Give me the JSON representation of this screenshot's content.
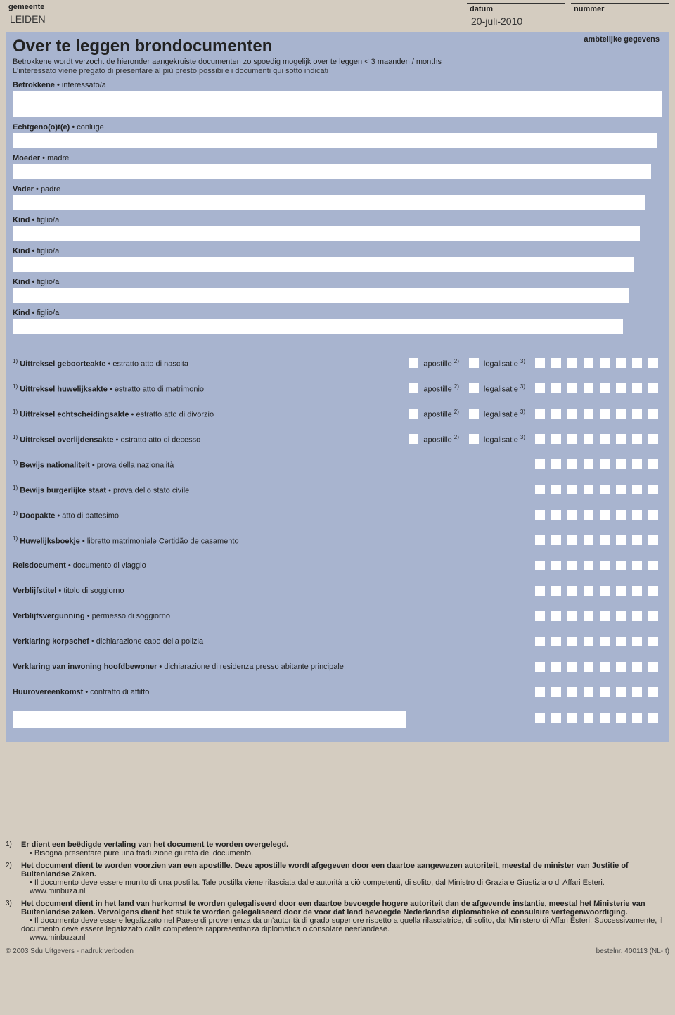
{
  "header": {
    "gemeente_label": "gemeente",
    "gemeente_value": "LEIDEN",
    "datum_label": "datum",
    "datum_value": "20-juli-2010",
    "nummer_label": "nummer",
    "ambtelijke_label": "ambtelijke gegevens"
  },
  "title": "Over te leggen brondocumenten",
  "subtitle_nl_1": "Betrokkene wordt verzocht de hieronder aangekruiste documenten zo spoedig mogelijk over te leggen",
  "subtitle_nl_2": "< 3 maanden / months",
  "subtitle_it": "L'interessato viene pregato di presentare al più presto possibile i documenti qui sotto indicati",
  "persons": [
    {
      "nl": "Betrokkene",
      "it": "interessato/a",
      "tall": true
    },
    {
      "nl": "Echtgeno(o)t(e)",
      "it": "coniuge"
    },
    {
      "nl": "Moeder",
      "it": "madre"
    },
    {
      "nl": "Vader",
      "it": "padre"
    },
    {
      "nl": "Kind",
      "it": "figlio/a"
    },
    {
      "nl": "Kind",
      "it": "figlio/a"
    },
    {
      "nl": "Kind",
      "it": "figlio/a"
    },
    {
      "nl": "Kind",
      "it": "figlio/a"
    }
  ],
  "apostille_label": "apostille",
  "apostille_sup": "2)",
  "legalisatie_label": "legalisatie",
  "legalisatie_sup": "3)",
  "docs": [
    {
      "sup": "1)",
      "nl": "Uittreksel geboorteakte",
      "it": "estratto atto di nascita",
      "ap_leg": true
    },
    {
      "sup": "1)",
      "nl": "Uittreksel huwelijksakte",
      "it": "estratto atto di matrimonio",
      "ap_leg": true
    },
    {
      "sup": "1)",
      "nl": "Uittreksel echtscheidingsakte",
      "it": "estratto atto di divorzio",
      "ap_leg": true
    },
    {
      "sup": "1)",
      "nl": "Uittreksel overlijdensakte",
      "it": "estratto atto di decesso",
      "ap_leg": true
    },
    {
      "sup": "1)",
      "nl": "Bewijs nationaliteit",
      "it": "prova della nazionalità",
      "ap_leg": false
    },
    {
      "sup": "1)",
      "nl": "Bewijs burgerlijke staat",
      "it": "prova dello stato civile",
      "ap_leg": false
    },
    {
      "sup": "1)",
      "nl": "Doopakte",
      "it": "atto di battesimo",
      "ap_leg": false
    },
    {
      "sup": "1)",
      "nl": "Huwelijksboekje",
      "it": "libretto matrimoniale Certidão de casamento",
      "ap_leg": false
    },
    {
      "sup": "",
      "nl": "Reisdocument",
      "it": "documento di viaggio",
      "ap_leg": false
    },
    {
      "sup": "",
      "nl": "Verblijfstitel",
      "it": "titolo di soggiorno",
      "ap_leg": false
    },
    {
      "sup": "",
      "nl": "Verblijfsvergunning",
      "it": "permesso di soggiorno",
      "ap_leg": false
    },
    {
      "sup": "",
      "nl": "Verklaring korpschef",
      "it": "dichiarazione capo della polizia",
      "ap_leg": false
    },
    {
      "sup": "",
      "nl": "Verklaring van inwoning hoofdbewoner",
      "it": "dichiarazione di residenza presso abitante principale",
      "ap_leg": false
    },
    {
      "sup": "",
      "nl": "Huurovereenkomst",
      "it": "contratto di affitto",
      "ap_leg": false
    }
  ],
  "grid_columns": 8,
  "footnotes": [
    {
      "num": "1)",
      "nl": "Er dient een beëdigde vertaling van het document te worden overgelegd.",
      "it": "• Bisogna presentare pure una traduzione giurata del documento."
    },
    {
      "num": "2)",
      "nl": "Het document dient te worden voorzien van een apostille. Deze apostille wordt afgegeven door een daartoe aangewezen autoriteit, meestal de minister van Justitie of Buitenlandse Zaken.",
      "it": "• Il documento deve essere munito di una postilla. Tale postilla viene rilasciata dalle autorità a ciò competenti, di solito, dal Ministro di Grazia e Giustizia o di Affari Esteri.",
      "url": "www.minbuza.nl"
    },
    {
      "num": "3)",
      "nl": "Het document dient in het land van herkomst te worden gelegaliseerd door een daartoe bevoegde hogere autoriteit dan de afgevende instantie, meestal het Ministerie van Buitenlandse zaken. Vervolgens dient het stuk te worden gelegaliseerd door de voor dat land bevoegde Nederlandse diplomatieke of consulaire vertegenwoordiging.",
      "it": "• Il documento deve essere legalizzato nel Paese di provenienza da un'autorità di grado superiore rispetto a quella rilasciatrice, di solito, dal Ministero di Affari Esteri. Successivamente, il documento deve essere legalizzato dalla competente rappresentanza diplomatica o consolare neerlandese.",
      "url": "www.minbuza.nl"
    }
  ],
  "footer": {
    "left": "© 2003 Sdu Uitgevers - nadruk verboden",
    "right": "bestelnr. 400113 (NL-It)"
  },
  "colors": {
    "page_bg": "#d4ccc0",
    "form_bg": "#a8b4cf",
    "check_bg": "#ffffff",
    "text": "#222222",
    "rule": "#6a7690"
  }
}
